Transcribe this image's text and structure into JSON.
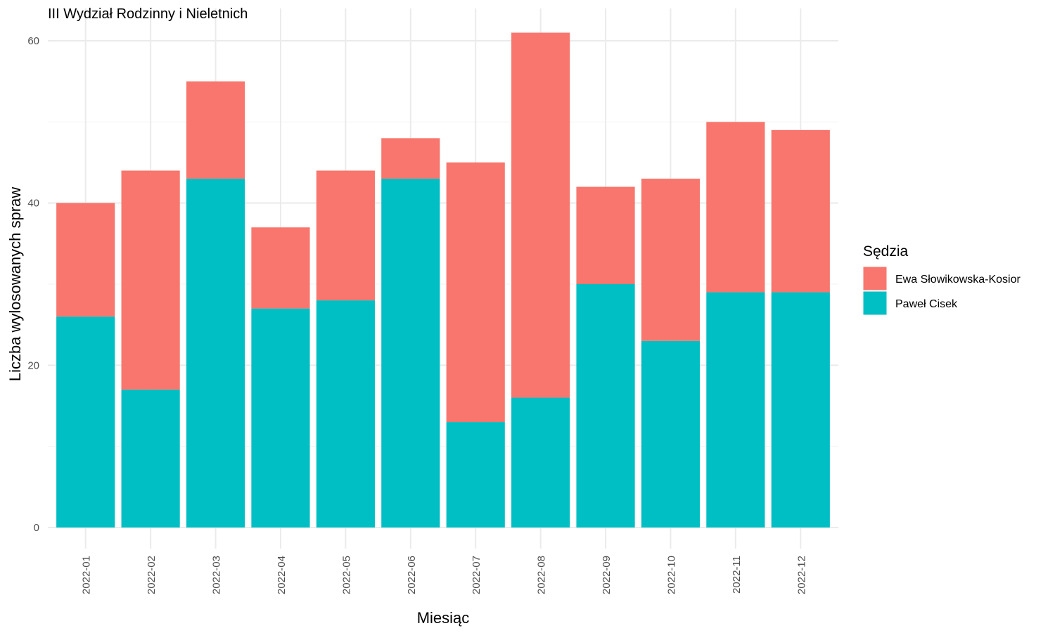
{
  "chart_data": {
    "type": "bar",
    "stacked": true,
    "title": "III Wydział Rodzinny i Nieletnich",
    "xlabel": "Miesiąc",
    "ylabel": "Liczba wylosowanych spraw",
    "categories": [
      "2022-01",
      "2022-02",
      "2022-03",
      "2022-04",
      "2022-05",
      "2022-06",
      "2022-07",
      "2022-08",
      "2022-09",
      "2022-10",
      "2022-11",
      "2022-12"
    ],
    "series": [
      {
        "name": "Paweł Cisek",
        "color": "#00BFC4",
        "values": [
          26,
          17,
          43,
          27,
          28,
          43,
          13,
          16,
          30,
          23,
          29,
          29
        ]
      },
      {
        "name": "Ewa Słowikowska-Kosior",
        "color": "#F8766D",
        "values": [
          14,
          27,
          12,
          10,
          16,
          5,
          32,
          45,
          12,
          20,
          21,
          20
        ]
      }
    ],
    "ylim": [
      0,
      61
    ],
    "yticks": [
      0,
      20,
      40,
      60
    ],
    "grid": true,
    "legend": {
      "title": "Sędzia",
      "placement": "right",
      "entries": [
        "Ewa Słowikowska-Kosior",
        "Paweł Cisek"
      ]
    }
  }
}
